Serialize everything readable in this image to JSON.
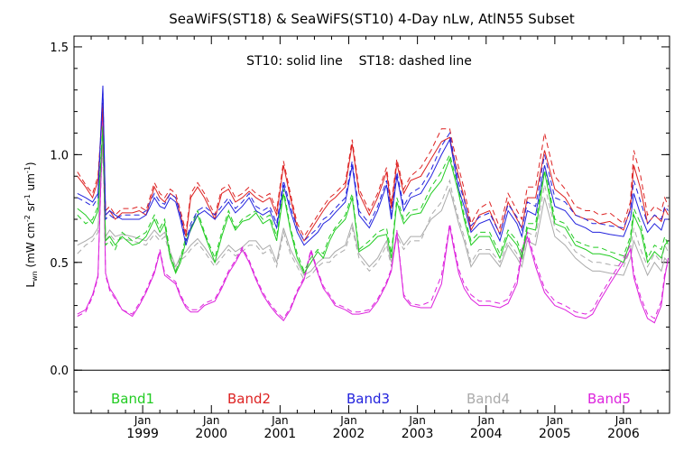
{
  "chart_data": {
    "type": "line",
    "title": "SeaWiFS(ST18) & SeaWiFS(ST10) 4-Day nLw, AtlN55 Subset",
    "annotation": "ST10: solid line    ST18: dashed line",
    "ylabel": "L_wn (mW cm^-2 sr^-1 um^-1)",
    "ylabel_main": "L",
    "ylabel_sub": "wn",
    "ylabel_units": " (mW cm",
    "ylabel_sup1": "-2",
    "ylabel_mid": " sr",
    "ylabel_sup2": "-1",
    "ylabel_mid2": " um",
    "ylabel_sup3": "-1",
    "ylabel_end": ")",
    "xlim": [
      1998.0,
      2006.67
    ],
    "ylim": [
      -0.2,
      1.55
    ],
    "y_ticks": [
      "0.0",
      "0.5",
      "1.0",
      "1.5"
    ],
    "y_tick_values": [
      0.0,
      0.5,
      1.0,
      1.5
    ],
    "x_ticks": [
      {
        "month": "Jan",
        "year": "1999",
        "value": 1999.0
      },
      {
        "month": "Jan",
        "year": "2000",
        "value": 2000.0
      },
      {
        "month": "Jan",
        "year": "2001",
        "value": 2001.0
      },
      {
        "month": "Jan",
        "year": "2002",
        "value": 2002.0
      },
      {
        "month": "Jan",
        "year": "2003",
        "value": 2003.0
      },
      {
        "month": "Jan",
        "year": "2004",
        "value": 2004.0
      },
      {
        "month": "Jan",
        "year": "2005",
        "value": 2005.0
      },
      {
        "month": "Jan",
        "year": "2006",
        "value": 2006.0
      }
    ],
    "reference_line": 0.0,
    "grid": false,
    "legend_position": "bottom",
    "x": [
      1998.05,
      1998.17,
      1998.27,
      1998.35,
      1998.42,
      1998.46,
      1998.52,
      1998.6,
      1998.7,
      1998.85,
      1998.95,
      1999.05,
      1999.17,
      1999.25,
      1999.32,
      1999.4,
      1999.48,
      1999.55,
      1999.63,
      1999.7,
      1999.8,
      1999.9,
      2000.05,
      2000.15,
      2000.25,
      2000.35,
      2000.45,
      2000.55,
      2000.65,
      2000.75,
      2000.85,
      2000.95,
      2001.05,
      2001.15,
      2001.25,
      2001.35,
      2001.45,
      2001.55,
      2001.63,
      2001.72,
      2001.8,
      2001.95,
      2002.05,
      2002.15,
      2002.3,
      2002.42,
      2002.55,
      2002.62,
      2002.7,
      2002.8,
      2002.9,
      2003.05,
      2003.2,
      2003.35,
      2003.47,
      2003.52,
      2003.6,
      2003.68,
      2003.78,
      2003.9,
      2004.05,
      2004.2,
      2004.32,
      2004.45,
      2004.52,
      2004.6,
      2004.72,
      2004.85,
      2005.0,
      2005.15,
      2005.3,
      2005.45,
      2005.55,
      2005.65,
      2005.8,
      2006.0,
      2006.1,
      2006.15,
      2006.25,
      2006.35,
      2006.45,
      2006.55,
      2006.6,
      2006.65
    ],
    "series": [
      {
        "name": "Band1",
        "color": "#22cc22",
        "st10": [
          0.75,
          0.72,
          0.68,
          0.74,
          1.12,
          0.6,
          0.62,
          0.58,
          0.62,
          0.58,
          0.59,
          0.62,
          0.7,
          0.64,
          0.68,
          0.52,
          0.45,
          0.5,
          0.6,
          0.65,
          0.72,
          0.63,
          0.5,
          0.62,
          0.72,
          0.65,
          0.69,
          0.7,
          0.73,
          0.68,
          0.7,
          0.6,
          0.82,
          0.65,
          0.52,
          0.45,
          0.5,
          0.55,
          0.52,
          0.6,
          0.65,
          0.7,
          0.8,
          0.55,
          0.58,
          0.62,
          0.63,
          0.52,
          0.78,
          0.68,
          0.72,
          0.73,
          0.82,
          0.88,
          0.98,
          0.92,
          0.82,
          0.7,
          0.58,
          0.62,
          0.62,
          0.52,
          0.63,
          0.58,
          0.52,
          0.66,
          0.65,
          0.92,
          0.68,
          0.66,
          0.58,
          0.56,
          0.54,
          0.54,
          0.53,
          0.5,
          0.6,
          0.72,
          0.65,
          0.5,
          0.55,
          0.52,
          0.58,
          0.6
        ],
        "st18": [
          0.72,
          0.68,
          0.7,
          0.76,
          1.14,
          0.58,
          0.6,
          0.56,
          0.64,
          0.6,
          0.62,
          0.64,
          0.72,
          0.66,
          0.7,
          0.54,
          0.46,
          0.52,
          0.62,
          0.66,
          0.74,
          0.64,
          0.52,
          0.64,
          0.74,
          0.66,
          0.7,
          0.72,
          0.74,
          0.7,
          0.72,
          0.62,
          0.84,
          0.66,
          0.54,
          0.46,
          0.52,
          0.56,
          0.54,
          0.62,
          0.66,
          0.72,
          0.82,
          0.56,
          0.6,
          0.64,
          0.66,
          0.54,
          0.8,
          0.7,
          0.74,
          0.75,
          0.85,
          0.92,
          1.0,
          0.94,
          0.84,
          0.72,
          0.6,
          0.64,
          0.64,
          0.54,
          0.65,
          0.6,
          0.54,
          0.68,
          0.68,
          0.95,
          0.7,
          0.68,
          0.6,
          0.58,
          0.57,
          0.57,
          0.55,
          0.53,
          0.62,
          0.75,
          0.68,
          0.52,
          0.58,
          0.56,
          0.62,
          0.58
        ]
      },
      {
        "name": "Band2",
        "color": "#dd2222",
        "st10": [
          0.9,
          0.85,
          0.8,
          0.88,
          1.22,
          0.72,
          0.74,
          0.7,
          0.73,
          0.73,
          0.74,
          0.72,
          0.85,
          0.8,
          0.78,
          0.82,
          0.8,
          0.72,
          0.62,
          0.8,
          0.85,
          0.8,
          0.7,
          0.82,
          0.84,
          0.78,
          0.8,
          0.83,
          0.8,
          0.78,
          0.8,
          0.72,
          0.95,
          0.8,
          0.66,
          0.6,
          0.65,
          0.7,
          0.74,
          0.78,
          0.8,
          0.85,
          1.05,
          0.82,
          0.72,
          0.8,
          0.92,
          0.75,
          0.96,
          0.82,
          0.88,
          0.9,
          0.98,
          1.06,
          1.08,
          1.0,
          0.9,
          0.8,
          0.65,
          0.72,
          0.74,
          0.63,
          0.78,
          0.7,
          0.66,
          0.8,
          0.8,
          1.02,
          0.84,
          0.8,
          0.72,
          0.7,
          0.7,
          0.68,
          0.69,
          0.65,
          0.75,
          0.95,
          0.84,
          0.68,
          0.72,
          0.69,
          0.75,
          0.72
        ],
        "st18": [
          0.92,
          0.86,
          0.82,
          0.9,
          1.24,
          0.74,
          0.76,
          0.72,
          0.75,
          0.75,
          0.76,
          0.74,
          0.87,
          0.82,
          0.8,
          0.84,
          0.82,
          0.74,
          0.64,
          0.82,
          0.87,
          0.82,
          0.72,
          0.84,
          0.86,
          0.8,
          0.82,
          0.85,
          0.82,
          0.8,
          0.82,
          0.74,
          0.97,
          0.82,
          0.68,
          0.62,
          0.67,
          0.72,
          0.76,
          0.8,
          0.82,
          0.87,
          1.07,
          0.84,
          0.74,
          0.82,
          0.94,
          0.77,
          0.98,
          0.84,
          0.9,
          0.94,
          1.02,
          1.12,
          1.12,
          1.04,
          0.94,
          0.84,
          0.68,
          0.75,
          0.78,
          0.66,
          0.82,
          0.74,
          0.7,
          0.85,
          0.85,
          1.1,
          0.9,
          0.84,
          0.76,
          0.74,
          0.74,
          0.72,
          0.73,
          0.68,
          0.78,
          1.02,
          0.9,
          0.72,
          0.76,
          0.74,
          0.8,
          0.76
        ]
      },
      {
        "name": "Band3",
        "color": "#2222dd",
        "st10": [
          0.82,
          0.8,
          0.78,
          0.82,
          1.32,
          0.72,
          0.74,
          0.72,
          0.7,
          0.7,
          0.7,
          0.72,
          0.8,
          0.76,
          0.75,
          0.8,
          0.78,
          0.7,
          0.58,
          0.66,
          0.72,
          0.74,
          0.7,
          0.74,
          0.78,
          0.73,
          0.76,
          0.8,
          0.74,
          0.72,
          0.74,
          0.66,
          0.86,
          0.74,
          0.64,
          0.58,
          0.61,
          0.64,
          0.68,
          0.7,
          0.73,
          0.78,
          0.95,
          0.72,
          0.66,
          0.74,
          0.86,
          0.7,
          0.9,
          0.74,
          0.8,
          0.82,
          0.9,
          1.0,
          1.07,
          0.98,
          0.84,
          0.76,
          0.64,
          0.68,
          0.7,
          0.6,
          0.74,
          0.68,
          0.62,
          0.74,
          0.72,
          0.95,
          0.76,
          0.74,
          0.68,
          0.66,
          0.64,
          0.64,
          0.63,
          0.62,
          0.7,
          0.82,
          0.72,
          0.64,
          0.68,
          0.65,
          0.7,
          0.7
        ],
        "st18": [
          0.8,
          0.78,
          0.76,
          0.8,
          1.3,
          0.7,
          0.72,
          0.7,
          0.72,
          0.72,
          0.72,
          0.74,
          0.82,
          0.78,
          0.77,
          0.82,
          0.8,
          0.72,
          0.6,
          0.68,
          0.74,
          0.76,
          0.72,
          0.76,
          0.8,
          0.75,
          0.78,
          0.82,
          0.76,
          0.74,
          0.76,
          0.68,
          0.88,
          0.76,
          0.66,
          0.6,
          0.63,
          0.66,
          0.7,
          0.72,
          0.75,
          0.8,
          0.97,
          0.74,
          0.68,
          0.76,
          0.88,
          0.72,
          0.92,
          0.76,
          0.82,
          0.85,
          0.93,
          1.04,
          1.1,
          1.01,
          0.87,
          0.79,
          0.67,
          0.71,
          0.73,
          0.63,
          0.77,
          0.71,
          0.65,
          0.78,
          0.76,
          1.0,
          0.8,
          0.78,
          0.72,
          0.7,
          0.68,
          0.68,
          0.67,
          0.66,
          0.74,
          0.88,
          0.78,
          0.68,
          0.72,
          0.7,
          0.76,
          0.74
        ]
      },
      {
        "name": "Band4",
        "color": "#aaaaaa",
        "st10": [
          0.58,
          0.6,
          0.62,
          0.66,
          1.05,
          0.62,
          0.65,
          0.62,
          0.63,
          0.62,
          0.61,
          0.6,
          0.65,
          0.62,
          0.64,
          0.55,
          0.48,
          0.53,
          0.55,
          0.58,
          0.61,
          0.57,
          0.5,
          0.54,
          0.58,
          0.55,
          0.57,
          0.6,
          0.6,
          0.56,
          0.58,
          0.5,
          0.66,
          0.56,
          0.5,
          0.44,
          0.46,
          0.5,
          0.52,
          0.52,
          0.55,
          0.58,
          0.68,
          0.54,
          0.48,
          0.52,
          0.6,
          0.5,
          0.64,
          0.58,
          0.62,
          0.62,
          0.7,
          0.74,
          0.84,
          0.78,
          0.68,
          0.6,
          0.48,
          0.54,
          0.54,
          0.48,
          0.58,
          0.52,
          0.48,
          0.6,
          0.58,
          0.8,
          0.62,
          0.58,
          0.52,
          0.48,
          0.46,
          0.46,
          0.45,
          0.44,
          0.52,
          0.6,
          0.52,
          0.44,
          0.5,
          0.46,
          0.52,
          0.5
        ],
        "st18": [
          0.54,
          0.58,
          0.6,
          0.64,
          1.03,
          0.6,
          0.63,
          0.6,
          0.61,
          0.6,
          0.59,
          0.58,
          0.63,
          0.6,
          0.62,
          0.53,
          0.46,
          0.51,
          0.53,
          0.56,
          0.59,
          0.55,
          0.48,
          0.52,
          0.56,
          0.53,
          0.55,
          0.58,
          0.58,
          0.54,
          0.56,
          0.48,
          0.64,
          0.54,
          0.48,
          0.42,
          0.44,
          0.48,
          0.5,
          0.5,
          0.53,
          0.56,
          0.66,
          0.52,
          0.46,
          0.5,
          0.58,
          0.48,
          0.62,
          0.56,
          0.6,
          0.6,
          0.72,
          0.78,
          0.88,
          0.8,
          0.7,
          0.62,
          0.5,
          0.56,
          0.56,
          0.5,
          0.6,
          0.54,
          0.5,
          0.64,
          0.62,
          0.86,
          0.66,
          0.62,
          0.55,
          0.52,
          0.5,
          0.5,
          0.49,
          0.48,
          0.56,
          0.66,
          0.56,
          0.48,
          0.54,
          0.5,
          0.58,
          0.55
        ]
      },
      {
        "name": "Band5",
        "color": "#dd22dd",
        "st10": [
          0.26,
          0.28,
          0.35,
          0.44,
          1.18,
          0.45,
          0.38,
          0.34,
          0.28,
          0.25,
          0.3,
          0.36,
          0.45,
          0.55,
          0.44,
          0.42,
          0.4,
          0.34,
          0.29,
          0.27,
          0.27,
          0.3,
          0.32,
          0.38,
          0.45,
          0.5,
          0.56,
          0.5,
          0.42,
          0.35,
          0.3,
          0.26,
          0.23,
          0.28,
          0.36,
          0.42,
          0.55,
          0.45,
          0.38,
          0.34,
          0.3,
          0.28,
          0.26,
          0.26,
          0.27,
          0.32,
          0.4,
          0.46,
          0.64,
          0.34,
          0.3,
          0.29,
          0.29,
          0.4,
          0.67,
          0.58,
          0.45,
          0.38,
          0.33,
          0.3,
          0.3,
          0.29,
          0.31,
          0.4,
          0.54,
          0.62,
          0.48,
          0.36,
          0.3,
          0.28,
          0.25,
          0.24,
          0.26,
          0.32,
          0.4,
          0.5,
          0.56,
          0.43,
          0.32,
          0.24,
          0.22,
          0.3,
          0.43,
          0.52
        ],
        "st18": [
          0.25,
          0.27,
          0.34,
          0.43,
          1.16,
          0.44,
          0.37,
          0.33,
          0.28,
          0.26,
          0.31,
          0.37,
          0.46,
          0.56,
          0.45,
          0.43,
          0.41,
          0.35,
          0.3,
          0.28,
          0.28,
          0.31,
          0.33,
          0.39,
          0.46,
          0.51,
          0.57,
          0.51,
          0.43,
          0.36,
          0.31,
          0.27,
          0.24,
          0.29,
          0.37,
          0.43,
          0.56,
          0.46,
          0.39,
          0.35,
          0.31,
          0.29,
          0.27,
          0.27,
          0.28,
          0.33,
          0.41,
          0.47,
          0.65,
          0.35,
          0.31,
          0.3,
          0.32,
          0.44,
          0.68,
          0.6,
          0.47,
          0.4,
          0.35,
          0.32,
          0.32,
          0.31,
          0.33,
          0.42,
          0.56,
          0.64,
          0.5,
          0.38,
          0.32,
          0.3,
          0.27,
          0.26,
          0.28,
          0.34,
          0.42,
          0.52,
          0.58,
          0.45,
          0.34,
          0.26,
          0.24,
          0.32,
          0.45,
          0.5
        ]
      }
    ]
  }
}
